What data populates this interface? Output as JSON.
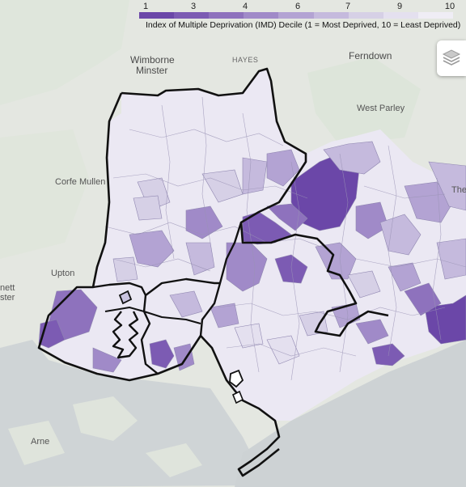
{
  "legend": {
    "ticks": [
      "1",
      "3",
      "4",
      "6",
      "7",
      "9",
      "10"
    ],
    "caption": "Index of Multiple Deprivation (IMD) Decile (1 = Most Deprived, 10 = Least Deprived)",
    "colors": [
      "#6b47a8",
      "#7c5bb3",
      "#8e72bd",
      "#a08ac8",
      "#b3a3d3",
      "#c5badd",
      "#d6d0e6",
      "#e4e0ef",
      "#efedf5"
    ]
  },
  "places": {
    "wimborne_line1": "Wimborne",
    "wimborne_line2": "Minster",
    "hayes": "HAYES",
    "ferndown": "Ferndown",
    "west_parley": "West Parley",
    "corfe_mullen": "Corfe Mullen",
    "upton": "Upton",
    "hamworthy_line1": "nett",
    "hamworthy_line2": "ster",
    "arne": "Arne",
    "the": "The"
  },
  "map_colors": {
    "land": "#e4e7e1",
    "sea": "#cdd2d4",
    "boundary": "#111111"
  },
  "controls": {
    "layers_icon": "layers-icon"
  }
}
